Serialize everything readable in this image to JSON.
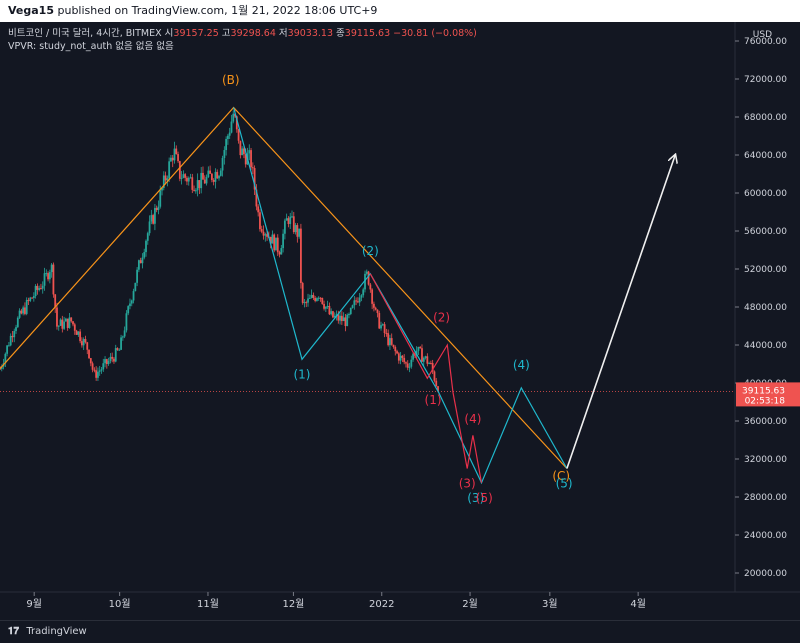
{
  "header": {
    "author": "Vega15",
    "published": "published on TradingView.com, 1월 21, 2022 18:06 UTC+9"
  },
  "legend": {
    "symbol": "비트코인 / 미국 달러, 4시간, BITMEX",
    "o_label": "시",
    "o": "39157.25",
    "h_label": "고",
    "h": "39298.64",
    "l_label": "저",
    "l": "39033.13",
    "c_label": "종",
    "c": "39115.63",
    "change": "−30.81 (−0.08%)",
    "indicator": "VPVR: study_not_auth 없음 없음 없음"
  },
  "price_tag": {
    "price": "39115.63",
    "countdown": "02:53:18"
  },
  "footer": {
    "brand": "TradingView",
    "logo": "tv-logo"
  },
  "colors": {
    "background": "#131722",
    "up": "#26a69a",
    "down": "#ef5350",
    "orange": "#f7931a",
    "cyan": "#1fb8cd",
    "red": "#e8304a",
    "white": "#f0f0f0"
  },
  "chart_data": {
    "type": "candlestick",
    "currency_label": "USD",
    "yticks": [
      20000,
      24000,
      28000,
      32000,
      36000,
      40000,
      44000,
      48000,
      52000,
      56000,
      60000,
      64000,
      68000,
      72000,
      76000
    ],
    "ytick_labels": [
      "20000.00",
      "24000.00",
      "28000.00",
      "32000.00",
      "36000.00",
      "40000.00",
      "44000.00",
      "48000.00",
      "52000.00",
      "56000.00",
      "60000.00",
      "64000.00",
      "68000.00",
      "72000.00",
      "76000.00"
    ],
    "ylim": [
      18000,
      78000
    ],
    "xlim": [
      "2021-08-20",
      "2022-05-05"
    ],
    "xticks": [
      {
        "date": "2021-09-01",
        "label": "9월"
      },
      {
        "date": "2021-10-01",
        "label": "10월"
      },
      {
        "date": "2021-11-01",
        "label": "11월"
      },
      {
        "date": "2021-12-01",
        "label": "12월"
      },
      {
        "date": "2022-01-01",
        "label": "2022"
      },
      {
        "date": "2022-02-01",
        "label": "2월"
      },
      {
        "date": "2022-03-01",
        "label": "3월"
      },
      {
        "date": "2022-04-01",
        "label": "4월"
      }
    ],
    "last_price": 39115.63,
    "price_path": [
      [
        "2021-08-20",
        41500
      ],
      [
        "2021-08-25",
        46000
      ],
      [
        "2021-08-30",
        48500
      ],
      [
        "2021-09-05",
        51000
      ],
      [
        "2021-09-07",
        52500
      ],
      [
        "2021-09-09",
        46000
      ],
      [
        "2021-09-14",
        46500
      ],
      [
        "2021-09-20",
        43500
      ],
      [
        "2021-09-22",
        40800
      ],
      [
        "2021-09-28",
        42500
      ],
      [
        "2021-10-01",
        43500
      ],
      [
        "2021-10-05",
        49000
      ],
      [
        "2021-10-10",
        55000
      ],
      [
        "2021-10-15",
        59500
      ],
      [
        "2021-10-20",
        64500
      ],
      [
        "2021-10-22",
        62000
      ],
      [
        "2021-10-28",
        61000
      ],
      [
        "2021-11-01",
        61500
      ],
      [
        "2021-11-05",
        62500
      ],
      [
        "2021-11-10",
        68500
      ],
      [
        "2021-11-12",
        64500
      ],
      [
        "2021-11-16",
        63500
      ],
      [
        "2021-11-19",
        57000
      ],
      [
        "2021-11-26",
        54000
      ],
      [
        "2021-11-29",
        57500
      ],
      [
        "2021-12-03",
        55500
      ],
      [
        "2021-12-04",
        48000
      ],
      [
        "2021-12-10",
        49500
      ],
      [
        "2021-12-14",
        47000
      ],
      [
        "2021-12-20",
        46500
      ],
      [
        "2021-12-27",
        51500
      ],
      [
        "2021-12-30",
        47000
      ],
      [
        "2022-01-05",
        43500
      ],
      [
        "2022-01-10",
        41800
      ],
      [
        "2022-01-13",
        43500
      ],
      [
        "2022-01-18",
        42000
      ],
      [
        "2022-01-21",
        39115.63
      ]
    ],
    "lines": [
      {
        "name": "",
        "color": "orange",
        "points": [
          [
            "2021-08-20",
            41500
          ],
          [
            "2021-11-10",
            69000
          ],
          [
            "2022-03-07",
            31000
          ]
        ]
      },
      {
        "name": "",
        "color": "cyan",
        "points": [
          [
            "2021-11-10",
            69000
          ],
          [
            "2021-12-04",
            42500
          ],
          [
            "2021-12-28",
            51500
          ],
          [
            "2022-01-21",
            39000
          ],
          [
            "2022-02-05",
            29500
          ],
          [
            "2022-02-19",
            39500
          ],
          [
            "2022-03-07",
            31000
          ]
        ]
      },
      {
        "name": "",
        "color": "red",
        "points": [
          [
            "2021-12-28",
            51500
          ],
          [
            "2022-01-17",
            40500
          ],
          [
            "2022-01-24",
            44000
          ],
          [
            "2022-01-26",
            39000
          ],
          [
            "2022-01-31",
            31000
          ],
          [
            "2022-02-02",
            34500
          ],
          [
            "2022-02-05",
            29500
          ]
        ]
      },
      {
        "name": "",
        "color": "white",
        "arrow": true,
        "points": [
          [
            "2022-03-07",
            31000
          ],
          [
            "2022-04-14",
            64000
          ]
        ]
      }
    ],
    "annotations": [
      {
        "text": "(B)",
        "color": "orange",
        "at": [
          "2021-11-09",
          71500
        ]
      },
      {
        "text": "(C)",
        "color": "orange",
        "at": [
          "2022-03-05",
          29800
        ]
      },
      {
        "text": "(1)",
        "color": "cyan",
        "at": [
          "2021-12-04",
          40500
        ]
      },
      {
        "text": "(2)",
        "color": "cyan",
        "at": [
          "2021-12-28",
          53500
        ]
      },
      {
        "text": "(3)",
        "color": "cyan",
        "at": [
          "2022-02-03",
          27500
        ]
      },
      {
        "text": "(4)",
        "color": "cyan",
        "at": [
          "2022-02-19",
          41500
        ]
      },
      {
        "text": "(5)",
        "color": "cyan",
        "at": [
          "2022-03-06",
          29000
        ]
      },
      {
        "text": "(1)",
        "color": "red",
        "at": [
          "2022-01-19",
          37800
        ]
      },
      {
        "text": "(2)",
        "color": "red",
        "at": [
          "2022-01-22",
          46500
        ]
      },
      {
        "text": "(3)",
        "color": "red",
        "at": [
          "2022-01-31",
          29000
        ]
      },
      {
        "text": "(4)",
        "color": "red",
        "at": [
          "2022-02-02",
          35800
        ]
      },
      {
        "text": "(5)",
        "color": "red",
        "at": [
          "2022-02-06",
          27500
        ]
      }
    ]
  }
}
